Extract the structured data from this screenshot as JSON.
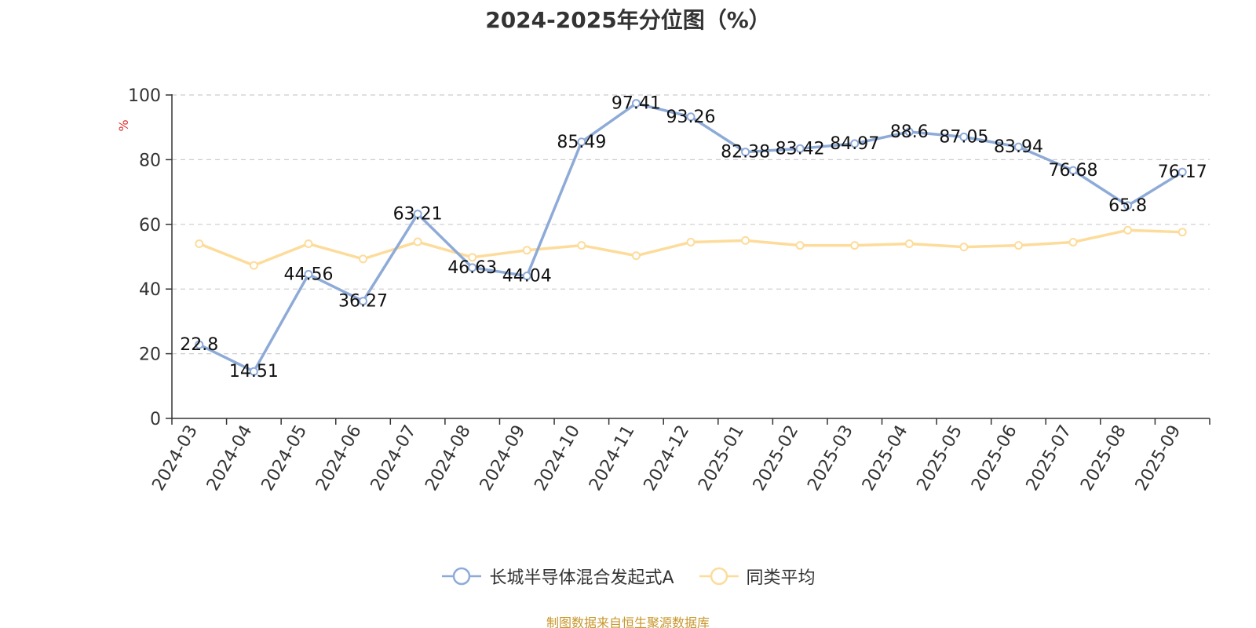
{
  "chart_data": {
    "type": "line",
    "title": "2024-2025年分位图（%）",
    "ylabel": "%",
    "ylim": [
      0,
      100
    ],
    "yticks": [
      0,
      20,
      40,
      60,
      80,
      100
    ],
    "grid": true,
    "legend_position": "bottom",
    "categories": [
      "2024-03",
      "2024-04",
      "2024-05",
      "2024-06",
      "2024-07",
      "2024-08",
      "2024-09",
      "2024-10",
      "2024-11",
      "2024-12",
      "2025-01",
      "2025-02",
      "2025-03",
      "2025-04",
      "2025-05",
      "2025-06",
      "2025-07",
      "2025-08",
      "2025-09"
    ],
    "series": [
      {
        "name": "长城半导体混合发起式A",
        "color": "#8eabd8",
        "values": [
          22.8,
          14.51,
          44.56,
          36.27,
          63.21,
          46.63,
          44.04,
          85.49,
          97.41,
          93.26,
          82.38,
          83.42,
          84.97,
          88.6,
          87.05,
          83.94,
          76.68,
          65.8,
          76.17
        ],
        "labels": [
          "22.8",
          "14.51",
          "44.56",
          "36.27",
          "63.21",
          "46.63",
          "44.04",
          "85.49",
          "97.41",
          "93.26",
          "82.38",
          "83.42",
          "84.97",
          "88.6",
          "87.05",
          "83.94",
          "76.68",
          "65.8",
          "76.17"
        ]
      },
      {
        "name": "同类平均",
        "color": "#fddc9b",
        "values": [
          54,
          47.3,
          54,
          49.3,
          54.6,
          49.8,
          52,
          53.5,
          50.3,
          54.5,
          55,
          53.5,
          53.5,
          54,
          53,
          53.5,
          54.5,
          58.2,
          57.6
        ]
      }
    ]
  },
  "footer": "制图数据来自恒生聚源数据库"
}
